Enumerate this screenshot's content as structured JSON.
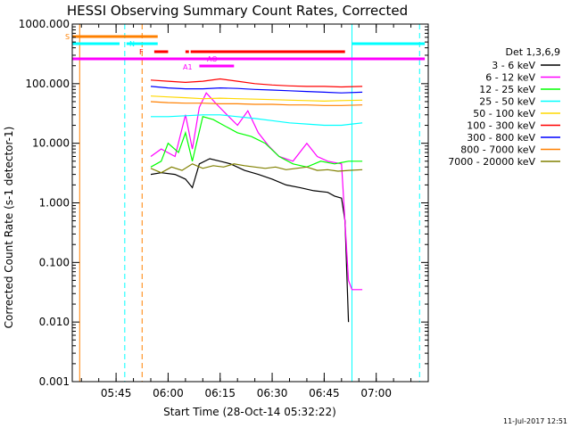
{
  "chart_data": {
    "type": "line",
    "title": "HESSI Observing Summary Count Rates, Corrected",
    "xlabel": "Start Time (28-Oct-14 05:32:22)",
    "ylabel": "Corrected Count Rate (s-1 detector-1)",
    "y_scale": "log",
    "ylim": [
      0.001,
      1000
    ],
    "xlim": [
      "05:32:22",
      "07:15:00"
    ],
    "x_ticks": [
      "05:45",
      "06:00",
      "06:15",
      "06:30",
      "06:45",
      "07:00"
    ],
    "y_ticks": [
      "0.001",
      "0.010",
      "0.100",
      "1.000",
      "10.000",
      "100.000",
      "1000.000"
    ],
    "footer": "11-Jul-2017 12:51",
    "legend_title": "Det 1,3,6,9",
    "legend_placement": "right",
    "series": [
      {
        "name": "3 - 6 keV",
        "color": "#000000",
        "x": [
          "05:55",
          "05:58",
          "06:02",
          "06:05",
          "06:07",
          "06:09",
          "06:12",
          "06:15",
          "06:18",
          "06:22",
          "06:26",
          "06:30",
          "06:34",
          "06:38",
          "06:42",
          "06:46",
          "06:48",
          "06:50",
          "06:51",
          "06:52"
        ],
        "y": [
          3.0,
          3.2,
          3.0,
          2.5,
          1.8,
          4.5,
          5.5,
          5.0,
          4.5,
          3.5,
          3.0,
          2.5,
          2.0,
          1.8,
          1.6,
          1.5,
          1.3,
          1.2,
          0.5,
          0.01
        ]
      },
      {
        "name": "6 - 12 keV",
        "color": "#ff00ff",
        "x": [
          "05:55",
          "05:58",
          "06:02",
          "06:05",
          "06:07",
          "06:09",
          "06:11",
          "06:14",
          "06:17",
          "06:20",
          "06:23",
          "06:26",
          "06:29",
          "06:32",
          "06:36",
          "06:40",
          "06:43",
          "06:46",
          "06:50",
          "06:52",
          "06:53",
          "06:56"
        ],
        "y": [
          6.0,
          8.0,
          6.0,
          30.0,
          8.0,
          40.0,
          70.0,
          45.0,
          30.0,
          20.0,
          35.0,
          15.0,
          9.0,
          6.0,
          5.0,
          10.0,
          6.0,
          5.0,
          4.5,
          0.05,
          0.035,
          0.035
        ]
      },
      {
        "name": "12 - 25 keV",
        "color": "#00ff00",
        "x": [
          "05:55",
          "05:58",
          "06:00",
          "06:03",
          "06:05",
          "06:07",
          "06:10",
          "06:13",
          "06:16",
          "06:20",
          "06:24",
          "06:28",
          "06:32",
          "06:36",
          "06:40",
          "06:44",
          "06:48",
          "06:52",
          "06:56"
        ],
        "y": [
          4.0,
          5.0,
          10.0,
          7.0,
          15.0,
          5.0,
          28.0,
          25.0,
          20.0,
          15.0,
          13.0,
          10.0,
          6.0,
          4.5,
          4.0,
          5.0,
          4.5,
          5.0,
          5.0
        ]
      },
      {
        "name": "25 - 50 keV",
        "color": "#00ffff",
        "x": [
          "05:55",
          "06:00",
          "06:05",
          "06:10",
          "06:15",
          "06:20",
          "06:25",
          "06:30",
          "06:35",
          "06:40",
          "06:45",
          "06:50",
          "06:53",
          "06:56"
        ],
        "y": [
          28,
          28,
          29,
          30,
          30,
          28,
          26,
          24,
          22,
          21,
          20,
          20,
          21,
          22
        ]
      },
      {
        "name": "50 - 100 keV",
        "color": "#ffd800",
        "x": [
          "05:55",
          "06:00",
          "06:05",
          "06:10",
          "06:15",
          "06:20",
          "06:25",
          "06:30",
          "06:35",
          "06:40",
          "06:45",
          "06:50",
          "06:56"
        ],
        "y": [
          62,
          60,
          58,
          56,
          57,
          56,
          55,
          54,
          53,
          52,
          51,
          52,
          53
        ]
      },
      {
        "name": "100 - 300 keV",
        "color": "#ff0000",
        "x": [
          "05:55",
          "06:00",
          "06:05",
          "06:10",
          "06:15",
          "06:20",
          "06:25",
          "06:30",
          "06:35",
          "06:40",
          "06:45",
          "06:50",
          "06:56"
        ],
        "y": [
          115,
          110,
          105,
          110,
          120,
          110,
          100,
          95,
          92,
          90,
          90,
          88,
          90
        ]
      },
      {
        "name": "300 - 800 keV",
        "color": "#0000ff",
        "x": [
          "05:55",
          "06:00",
          "06:05",
          "06:10",
          "06:15",
          "06:20",
          "06:25",
          "06:30",
          "06:35",
          "06:40",
          "06:45",
          "06:50",
          "06:56"
        ],
        "y": [
          90,
          85,
          82,
          82,
          85,
          83,
          80,
          78,
          76,
          74,
          72,
          70,
          72
        ]
      },
      {
        "name": "800 - 7000 keV",
        "color": "#ff8000",
        "x": [
          "05:55",
          "06:00",
          "06:05",
          "06:10",
          "06:15",
          "06:20",
          "06:25",
          "06:30",
          "06:35",
          "06:40",
          "06:45",
          "06:50",
          "06:56"
        ],
        "y": [
          50,
          48,
          47,
          47,
          46,
          46,
          45,
          45,
          44,
          44,
          43,
          43,
          44
        ]
      },
      {
        "name": "7000 - 20000 keV",
        "color": "#808000",
        "x": [
          "05:55",
          "05:58",
          "06:01",
          "06:04",
          "06:07",
          "06:10",
          "06:13",
          "06:16",
          "06:19",
          "06:22",
          "06:25",
          "06:28",
          "06:31",
          "06:34",
          "06:37",
          "06:40",
          "06:43",
          "06:46",
          "06:49",
          "06:52",
          "06:56"
        ],
        "y": [
          3.8,
          3.2,
          4.0,
          3.5,
          4.5,
          3.8,
          4.2,
          4.0,
          4.5,
          4.2,
          4.0,
          3.8,
          4.0,
          3.6,
          3.8,
          4.0,
          3.5,
          3.6,
          3.4,
          3.5,
          3.6
        ]
      }
    ],
    "flags": [
      {
        "label": "S",
        "color": "#ff8000",
        "spans": [
          [
            "05:32:22",
            "05:57:00"
          ]
        ]
      },
      {
        "label": "N",
        "color": "#00ffff",
        "spans": [
          [
            "05:32:22",
            "05:46:00"
          ],
          [
            "05:48:00",
            "05:57:00"
          ],
          [
            "06:53:00",
            "07:14:00"
          ]
        ]
      },
      {
        "label": "F",
        "color": "#ff0000",
        "spans": [
          [
            "05:56:00",
            "06:00:00"
          ],
          [
            "06:05:00",
            "06:06:00"
          ],
          [
            "06:06:30",
            "06:51:00"
          ]
        ]
      },
      {
        "label": "",
        "color": "#ff00ff",
        "spans": [
          [
            "05:32:22",
            "07:14:00"
          ]
        ]
      },
      {
        "label": "AO",
        "color": "#ff00ff",
        "spans": [
          [
            "06:10:30",
            "06:16:00"
          ]
        ]
      },
      {
        "label": "A1",
        "color": "#ff00ff",
        "spans": [
          [
            "06:09:00",
            "06:19:00"
          ]
        ]
      }
    ],
    "vlines": [
      {
        "time": "05:32:22",
        "color": "#00ffff",
        "style": "solid"
      },
      {
        "time": "05:34:30",
        "color": "#ff8000",
        "style": "solid"
      },
      {
        "time": "05:47:30",
        "color": "#00ffff",
        "style": "dashed"
      },
      {
        "time": "05:52:30",
        "color": "#ff8000",
        "style": "dashed"
      },
      {
        "time": "06:53:00",
        "color": "#00ffff",
        "style": "solid"
      },
      {
        "time": "07:12:30",
        "color": "#00ffff",
        "style": "dashed"
      }
    ]
  }
}
